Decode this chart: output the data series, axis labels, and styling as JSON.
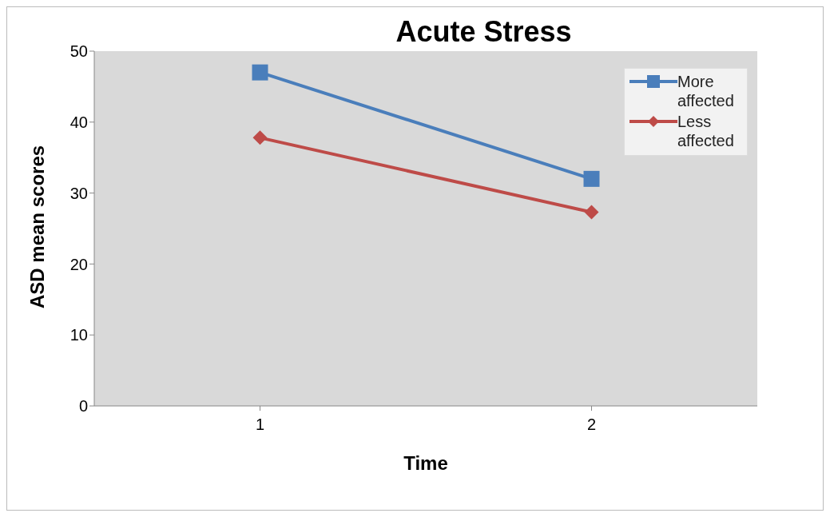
{
  "chart_data": {
    "type": "line",
    "title": "Acute Stress",
    "xlabel": "Time",
    "ylabel": "ASD mean scores",
    "x": [
      1,
      2
    ],
    "series": [
      {
        "name": "More affected",
        "color": "#4a7ebb",
        "values": [
          47,
          32
        ],
        "marker": "square"
      },
      {
        "name": "Less affected",
        "color": "#be4b48",
        "values": [
          37.8,
          27.3
        ],
        "marker": "diamond"
      }
    ],
    "xlim": [
      0.5,
      2.5
    ],
    "xticks": [
      1,
      2
    ],
    "ylim": [
      0,
      50
    ],
    "yticks": [
      0,
      10,
      20,
      30,
      40,
      50
    ],
    "grid": false,
    "legend": "top right",
    "line_style": "solid"
  }
}
